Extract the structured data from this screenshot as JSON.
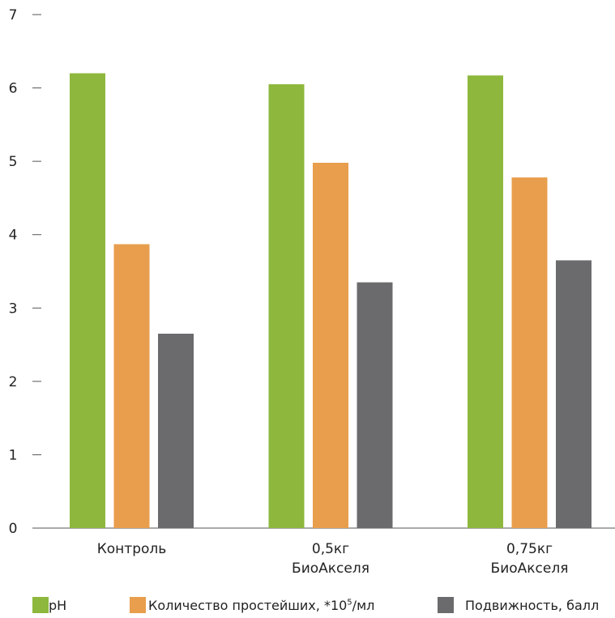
{
  "chart_data": {
    "type": "bar",
    "categories": [
      [
        "Контроль"
      ],
      [
        "0,5кг",
        "БиоАкселя"
      ],
      [
        "0,75кг",
        "БиоАкселя"
      ]
    ],
    "series": [
      {
        "name": "pH",
        "color": "#8db83d",
        "values": [
          6.2,
          6.05,
          6.17
        ]
      },
      {
        "name": "Количество простейших, *10⁵/мл",
        "color": "#e89e4c",
        "values": [
          3.87,
          4.98,
          4.78
        ]
      },
      {
        "name": "Подвижность, балл",
        "color": "#6b6b6e",
        "values": [
          2.65,
          3.35,
          3.65
        ]
      }
    ],
    "ylim": [
      0,
      7
    ],
    "yticks": [
      "0",
      "1",
      "2",
      "3",
      "4",
      "5",
      "6",
      "7"
    ],
    "grid": false,
    "legend_position": "bottom"
  },
  "legend": {
    "ph": "pH",
    "protozoa_prefix": "Количество простейших, *10",
    "protozoa_sup": "5",
    "protozoa_suffix": "/мл",
    "mobility": "Подвижность, балл"
  }
}
